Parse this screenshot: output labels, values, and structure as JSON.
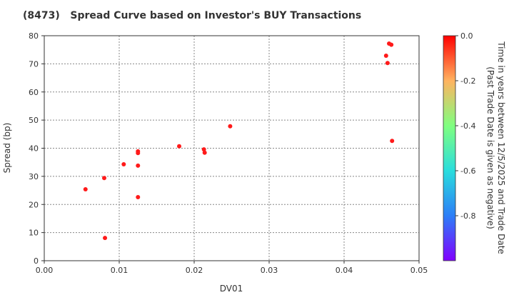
{
  "chart_data": {
    "type": "scatter",
    "title": "(8473)   Spread Curve based on Investor's BUY Transactions",
    "xlabel": "DV01",
    "ylabel": "Spread (bp)",
    "xlim": [
      0,
      0.05
    ],
    "ylim": [
      0,
      80
    ],
    "xticks": [
      "0.00",
      "0.01",
      "0.02",
      "0.03",
      "0.04",
      "0.05"
    ],
    "yticks": [
      "0",
      "10",
      "20",
      "30",
      "40",
      "50",
      "60",
      "70",
      "80"
    ],
    "grid": true,
    "point_color": "#ff1a1a",
    "points": [
      {
        "x": 0.0055,
        "y": 25.4
      },
      {
        "x": 0.008,
        "y": 29.4
      },
      {
        "x": 0.0081,
        "y": 8.1
      },
      {
        "x": 0.0106,
        "y": 34.3
      },
      {
        "x": 0.0125,
        "y": 38.9
      },
      {
        "x": 0.0125,
        "y": 38.3
      },
      {
        "x": 0.0125,
        "y": 33.8
      },
      {
        "x": 0.0125,
        "y": 22.6
      },
      {
        "x": 0.018,
        "y": 40.7
      },
      {
        "x": 0.0213,
        "y": 39.6
      },
      {
        "x": 0.0214,
        "y": 38.4
      },
      {
        "x": 0.0248,
        "y": 47.8
      },
      {
        "x": 0.046,
        "y": 77.2
      },
      {
        "x": 0.0463,
        "y": 76.8
      },
      {
        "x": 0.0456,
        "y": 72.9
      },
      {
        "x": 0.0458,
        "y": 70.3
      },
      {
        "x": 0.0464,
        "y": 42.6
      }
    ],
    "colorbar": {
      "label_line1": "Time in years between 12/5/2025 and Trade Date",
      "label_line2": "(Past Trade Date is given as negative)",
      "range": [
        -1,
        0
      ],
      "ticks": [
        "0.0",
        "-0.2",
        "-0.4",
        "-0.6",
        "-0.8"
      ],
      "tick_values": [
        0,
        -0.2,
        -0.4,
        -0.6,
        -0.8
      ]
    }
  }
}
